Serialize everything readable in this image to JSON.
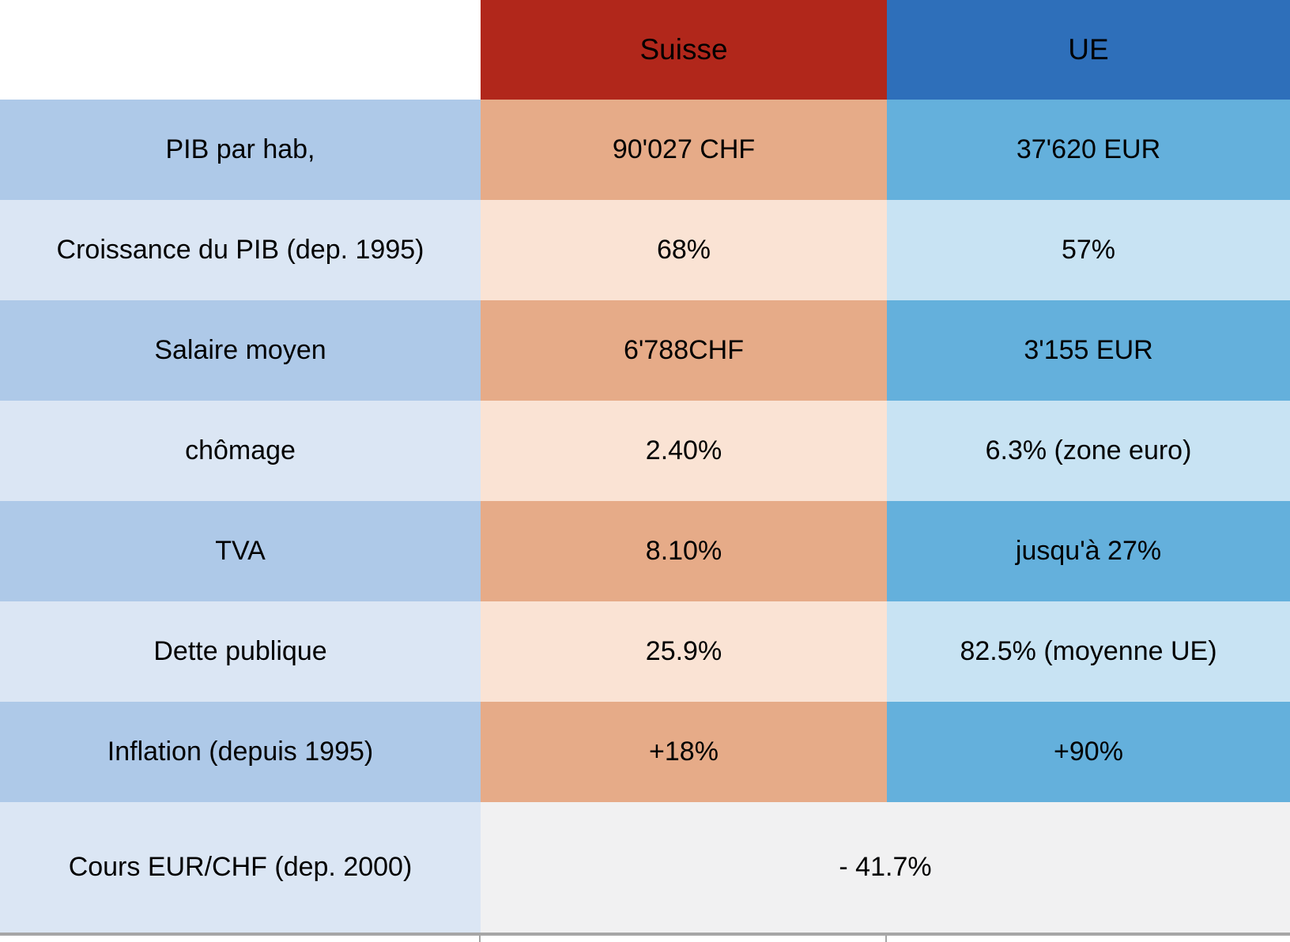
{
  "header": {
    "suisse": "Suisse",
    "ue": "UE"
  },
  "rows": [
    {
      "label": "PIB par hab,",
      "suisse": "90'027 CHF",
      "ue": "37'620 EUR"
    },
    {
      "label": "Croissance du PIB (dep. 1995)",
      "suisse": "68%",
      "ue": "57%"
    },
    {
      "label": "Salaire moyen",
      "suisse": "6'788CHF",
      "ue": "3'155 EUR"
    },
    {
      "label": "chômage",
      "suisse": "2.40%",
      "ue": "6.3% (zone euro)"
    },
    {
      "label": "TVA",
      "suisse": "8.10%",
      "ue": "jusqu'à 27%"
    },
    {
      "label": "Dette publique",
      "suisse": "25.9%",
      "ue": "82.5% (moyenne UE)"
    },
    {
      "label": "Inflation (depuis 1995)",
      "suisse": "+18%",
      "ue": "+90%"
    }
  ],
  "merged_row": {
    "label": "Cours EUR/CHF (dep. 2000)",
    "value": "- 41.7%"
  },
  "colors": {
    "header-red": "#B1271B",
    "header-blue": "#2E6FBA",
    "label-dark": "#AEC9E8",
    "label-light": "#DBE6F4",
    "suisse-dark": "#E6AB88",
    "suisse-light": "#FAE3D4",
    "ue-dark": "#64B0DC",
    "ue-light": "#C8E3F3",
    "merged-gray": "#F1F1F2",
    "rule-gray": "#A6A6A6"
  },
  "chart_data": {
    "type": "table",
    "columns": [
      "",
      "Suisse",
      "UE"
    ],
    "rows": [
      [
        "PIB par hab,",
        "90'027 CHF",
        "37'620 EUR"
      ],
      [
        "Croissance du PIB (dep. 1995)",
        "68%",
        "57%"
      ],
      [
        "Salaire moyen",
        "6'788CHF",
        "3'155 EUR"
      ],
      [
        "chômage",
        "2.40%",
        "6.3% (zone euro)"
      ],
      [
        "TVA",
        "8.10%",
        "jusqu'à 27%"
      ],
      [
        "Dette publique",
        "25.9%",
        "82.5% (moyenne UE)"
      ],
      [
        "Inflation (depuis 1995)",
        "+18%",
        "+90%"
      ],
      [
        "Cours EUR/CHF (dep. 2000)",
        "- 41.7%",
        "- 41.7%"
      ]
    ],
    "notes": "Last row value '- 41.7%' is a single merged cell spanning the Suisse and UE columns."
  }
}
